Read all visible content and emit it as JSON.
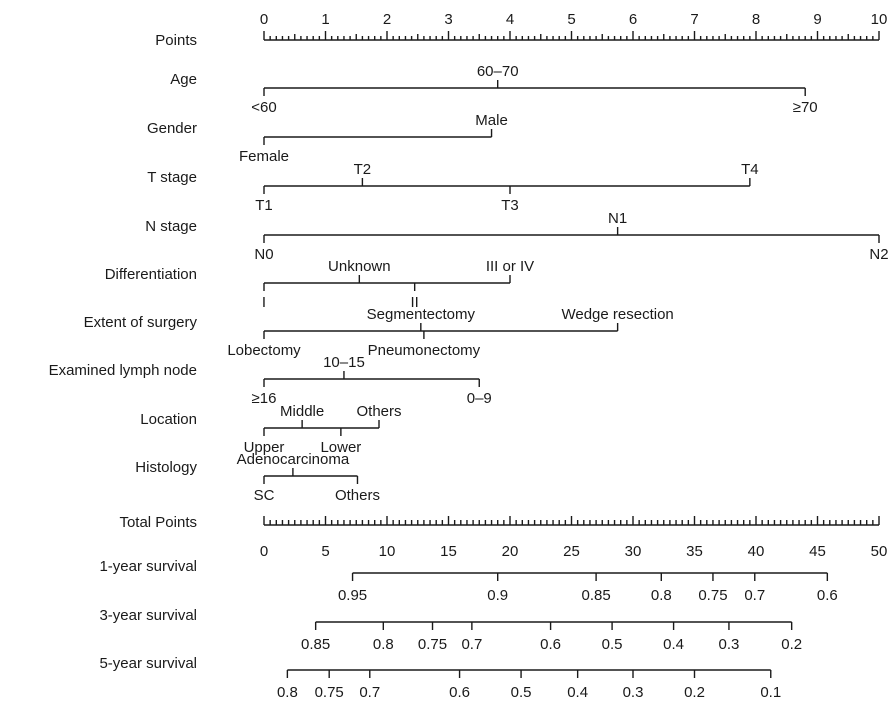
{
  "chart_data": {
    "type": "nomogram",
    "points_axis": {
      "label": "Points",
      "range": [
        0,
        10
      ],
      "tick_labels": [
        "0",
        "1",
        "2",
        "3",
        "4",
        "5",
        "6",
        "7",
        "8",
        "9",
        "10"
      ]
    },
    "variables": [
      {
        "label": "Age",
        "levels": [
          {
            "label": "<60",
            "points": 0,
            "side": "below"
          },
          {
            "label": "60–70",
            "points": 3.8,
            "side": "above"
          },
          {
            "label": "≥70",
            "points": 8.8,
            "side": "below"
          }
        ]
      },
      {
        "label": "Gender",
        "levels": [
          {
            "label": "Female",
            "points": 0,
            "side": "below"
          },
          {
            "label": "Male",
            "points": 3.7,
            "side": "above"
          }
        ]
      },
      {
        "label": "T stage",
        "levels": [
          {
            "label": "T1",
            "points": 0,
            "side": "below"
          },
          {
            "label": "T2",
            "points": 1.6,
            "side": "above"
          },
          {
            "label": "T3",
            "points": 4.0,
            "side": "below"
          },
          {
            "label": "T4",
            "points": 7.9,
            "side": "above"
          }
        ]
      },
      {
        "label": "N stage",
        "levels": [
          {
            "label": "N0",
            "points": 0,
            "side": "below"
          },
          {
            "label": "N1",
            "points": 5.75,
            "side": "above"
          },
          {
            "label": "N2",
            "points": 10.0,
            "side": "below"
          }
        ]
      },
      {
        "label": "Differentiation",
        "levels": [
          {
            "label": "I",
            "points": 0,
            "side": "below"
          },
          {
            "label": "Unknown",
            "points": 1.55,
            "side": "above"
          },
          {
            "label": "II",
            "points": 2.45,
            "side": "below"
          },
          {
            "label": "III or IV",
            "points": 4.0,
            "side": "above"
          }
        ]
      },
      {
        "label": "Extent of surgery",
        "levels": [
          {
            "label": "Lobectomy",
            "points": 0,
            "side": "below"
          },
          {
            "label": "Segmentectomy",
            "points": 2.55,
            "side": "above"
          },
          {
            "label": "Pneumonectomy",
            "points": 2.6,
            "side": "below"
          },
          {
            "label": "Wedge resection",
            "points": 5.75,
            "side": "above"
          }
        ]
      },
      {
        "label": "Examined lymph node",
        "levels": [
          {
            "label": "≥16",
            "points": 0,
            "side": "below"
          },
          {
            "label": "10–15",
            "points": 1.3,
            "side": "above"
          },
          {
            "label": "0–9",
            "points": 3.5,
            "side": "below"
          }
        ]
      },
      {
        "label": "Location",
        "levels": [
          {
            "label": "Upper",
            "points": 0,
            "side": "below"
          },
          {
            "label": "Middle",
            "points": 0.62,
            "side": "above"
          },
          {
            "label": "Lower",
            "points": 1.25,
            "side": "below"
          },
          {
            "label": "Others",
            "points": 1.87,
            "side": "above"
          }
        ]
      },
      {
        "label": "Histology",
        "levels": [
          {
            "label": "SC",
            "points": 0,
            "side": "below"
          },
          {
            "label": "Adenocarcinoma",
            "points": 0.47,
            "side": "above"
          },
          {
            "label": "Others",
            "points": 1.52,
            "side": "below"
          }
        ]
      }
    ],
    "total_points_axis": {
      "label": "Total Points",
      "range": [
        0,
        50
      ],
      "tick_labels": [
        "0",
        "5",
        "10",
        "15",
        "20",
        "25",
        "30",
        "35",
        "40",
        "45",
        "50"
      ]
    },
    "survival_scales": [
      {
        "label": "1-year survival",
        "range_total_points": [
          7.2,
          45.8
        ],
        "ticks": [
          {
            "label": "0.95",
            "total_points": 7.2
          },
          {
            "label": "0.9",
            "total_points": 19.0
          },
          {
            "label": "0.85",
            "total_points": 27.0
          },
          {
            "label": "0.8",
            "total_points": 32.3
          },
          {
            "label": "0.75",
            "total_points": 36.5
          },
          {
            "label": "0.7",
            "total_points": 39.9
          },
          {
            "label": "0.6",
            "total_points": 45.8
          }
        ]
      },
      {
        "label": "3-year survival",
        "range_total_points": [
          4.2,
          42.9
        ],
        "ticks": [
          {
            "label": "0.85",
            "total_points": 4.2
          },
          {
            "label": "0.8",
            "total_points": 9.7
          },
          {
            "label": "0.75",
            "total_points": 13.7
          },
          {
            "label": "0.7",
            "total_points": 16.9
          },
          {
            "label": "0.6",
            "total_points": 23.3
          },
          {
            "label": "0.5",
            "total_points": 28.3
          },
          {
            "label": "0.4",
            "total_points": 33.3
          },
          {
            "label": "0.3",
            "total_points": 37.8
          },
          {
            "label": "0.2",
            "total_points": 42.9
          }
        ]
      },
      {
        "label": "5-year survival",
        "range_total_points": [
          1.9,
          41.2
        ],
        "ticks": [
          {
            "label": "0.8",
            "total_points": 1.9
          },
          {
            "label": "0.75",
            "total_points": 5.3
          },
          {
            "label": "0.7",
            "total_points": 8.6
          },
          {
            "label": "0.6",
            "total_points": 15.9
          },
          {
            "label": "0.5",
            "total_points": 20.9
          },
          {
            "label": "0.4",
            "total_points": 25.5
          },
          {
            "label": "0.3",
            "total_points": 30.0
          },
          {
            "label": "0.2",
            "total_points": 35.0
          },
          {
            "label": "0.1",
            "total_points": 41.2
          }
        ]
      }
    ]
  }
}
